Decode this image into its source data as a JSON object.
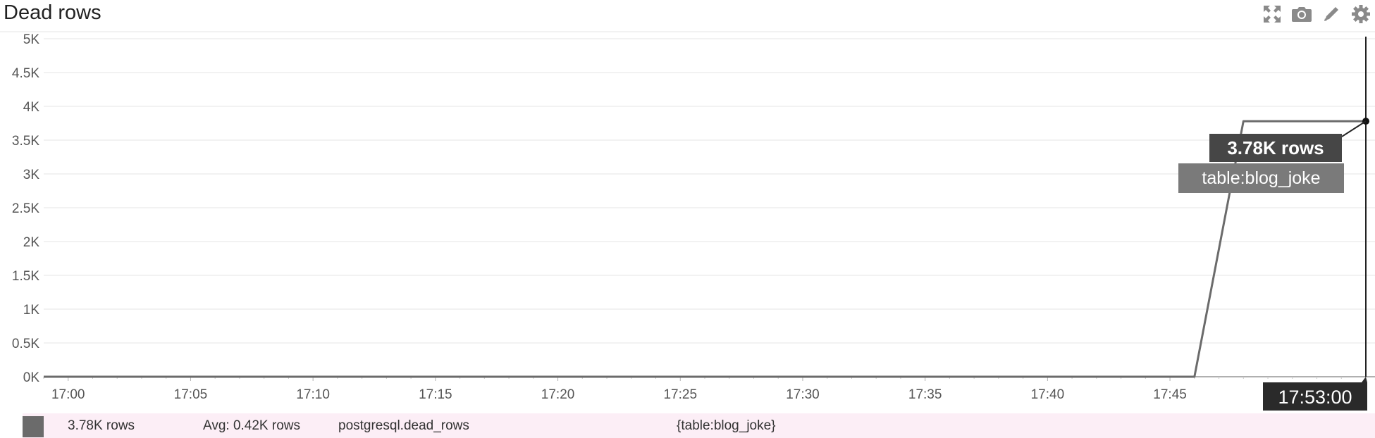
{
  "widget": {
    "title": "Dead rows",
    "toolbar": {
      "expand_icon": "expand-icon",
      "snapshot_icon": "camera-icon",
      "edit_icon": "pencil-icon",
      "settings_icon": "gear-icon"
    }
  },
  "chart_data": {
    "type": "line",
    "title": "Dead rows",
    "y_ticks": [
      "0K",
      "0.5K",
      "1K",
      "1.5K",
      "2K",
      "2.5K",
      "3K",
      "3.5K",
      "4K",
      "4.5K",
      "5K"
    ],
    "ylim": [
      0,
      5000
    ],
    "x_ticks": [
      "17:00",
      "17:05",
      "17:10",
      "17:15",
      "17:20",
      "17:25",
      "17:30",
      "17:35",
      "17:40",
      "17:45"
    ],
    "x_tick_minutes": [
      0,
      5,
      10,
      15,
      20,
      25,
      30,
      35,
      40,
      45
    ],
    "xlim_minutes": [
      -1,
      53
    ],
    "grid": true,
    "series": [
      {
        "name": "postgresql.dead_rows",
        "color": "#6b6b6b",
        "points": [
          {
            "t": "16:59",
            "v": 0
          },
          {
            "t": "17:46",
            "v": 0
          },
          {
            "t": "17:48",
            "v": 3780
          },
          {
            "t": "17:53",
            "v": 3780
          }
        ]
      }
    ],
    "hover": {
      "value_label": "3.78K rows",
      "tag_label": "table:blog_joke",
      "time_label": "17:53:00",
      "t": "17:53",
      "v": 3780
    }
  },
  "legend": {
    "swatch_color": "#6b6b6b",
    "value": "3.78K rows",
    "avg": "Avg: 0.42K rows",
    "metric": "postgresql.dead_rows",
    "scope": "{table:blog_joke}"
  }
}
